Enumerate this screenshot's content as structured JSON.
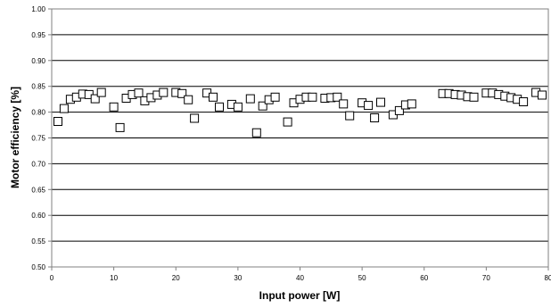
{
  "chart_data": {
    "type": "scatter",
    "title": "",
    "xlabel": "Input power [W]",
    "ylabel": "Motor efficiency [%]",
    "xlim": [
      0,
      80
    ],
    "ylim": [
      0.5,
      1.0
    ],
    "x_ticks": [
      "0",
      "10",
      "20",
      "30",
      "40",
      "50",
      "60",
      "70",
      "80"
    ],
    "y_ticks": [
      "0.50",
      "0.55",
      "0.60",
      "0.65",
      "0.70",
      "0.75",
      "0.80",
      "0.85",
      "0.90",
      "0.95",
      "1.00"
    ],
    "grid": "horizontal",
    "legend": "none",
    "marker": "open-square",
    "colors": {
      "marker_stroke": "#000000",
      "grid": "#000000",
      "frame": "#808080"
    },
    "series": [
      {
        "points": [
          [
            1,
            0.782
          ],
          [
            2,
            0.807
          ],
          [
            3,
            0.825
          ],
          [
            4,
            0.829
          ],
          [
            5,
            0.835
          ],
          [
            6,
            0.834
          ],
          [
            7,
            0.826
          ],
          [
            8,
            0.838
          ],
          [
            10,
            0.81
          ],
          [
            11,
            0.77
          ],
          [
            12,
            0.827
          ],
          [
            13,
            0.834
          ],
          [
            14,
            0.837
          ],
          [
            15,
            0.822
          ],
          [
            16,
            0.828
          ],
          [
            17,
            0.833
          ],
          [
            18,
            0.838
          ],
          [
            20,
            0.838
          ],
          [
            21,
            0.836
          ],
          [
            22,
            0.824
          ],
          [
            23,
            0.788
          ],
          [
            25,
            0.837
          ],
          [
            26,
            0.829
          ],
          [
            27,
            0.81
          ],
          [
            29,
            0.815
          ],
          [
            30,
            0.81
          ],
          [
            32,
            0.826
          ],
          [
            33,
            0.76
          ],
          [
            34,
            0.812
          ],
          [
            35,
            0.824
          ],
          [
            36,
            0.829
          ],
          [
            38,
            0.781
          ],
          [
            39,
            0.818
          ],
          [
            40,
            0.825
          ],
          [
            41,
            0.829
          ],
          [
            42,
            0.829
          ],
          [
            44,
            0.827
          ],
          [
            45,
            0.828
          ],
          [
            46,
            0.829
          ],
          [
            47,
            0.816
          ],
          [
            48,
            0.793
          ],
          [
            50,
            0.818
          ],
          [
            51,
            0.813
          ],
          [
            52,
            0.789
          ],
          [
            53,
            0.819
          ],
          [
            55,
            0.795
          ],
          [
            56,
            0.803
          ],
          [
            57,
            0.814
          ],
          [
            58,
            0.816
          ],
          [
            63,
            0.836
          ],
          [
            64,
            0.836
          ],
          [
            65,
            0.834
          ],
          [
            66,
            0.833
          ],
          [
            67,
            0.83
          ],
          [
            68,
            0.829
          ],
          [
            70,
            0.837
          ],
          [
            71,
            0.837
          ],
          [
            72,
            0.834
          ],
          [
            73,
            0.831
          ],
          [
            74,
            0.828
          ],
          [
            75,
            0.825
          ],
          [
            76,
            0.82
          ],
          [
            78,
            0.838
          ],
          [
            79,
            0.833
          ]
        ]
      }
    ]
  }
}
